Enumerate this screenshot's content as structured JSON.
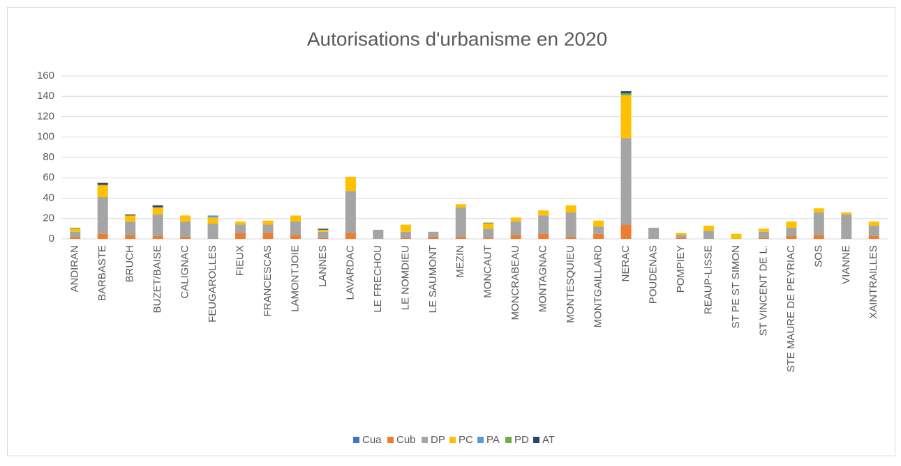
{
  "chart_data": {
    "type": "stacked-bar",
    "title": "Autorisations d'urbanisme en 2020",
    "categories": [
      "ANDIRAN",
      "BARBASTE",
      "BRUCH",
      "BUZET/BAISE",
      "CALIGNAC",
      "FEUGAROLLES",
      "FIEUX",
      "FRANCESCAS",
      "LAMONTJOIE",
      "LANNES",
      "LAVARDAC",
      "LE FRECHOU",
      "LE NOMDIEU",
      "LE SAUMONT",
      "MEZIN",
      "MONCAUT",
      "MONCRABEAU",
      "MONTAGNAC",
      "MONTESQUIEU",
      "MONTGAILLARD",
      "NERAC",
      "POUDENAS",
      "POMPIEY",
      "REAUP-LISSE",
      "ST PE ST SIMON",
      "ST VINCENT DE L.",
      "STE MAURE DE PEYRIAC",
      "SOS",
      "VIANNE",
      "XAINTRAILLES"
    ],
    "series": [
      {
        "name": "Cua",
        "color": "#4472c4",
        "values": [
          0,
          0,
          0,
          0,
          0,
          0,
          0,
          0,
          0,
          0,
          0,
          0,
          0,
          0,
          0,
          0,
          0,
          0,
          0,
          0,
          0,
          0,
          0,
          0,
          0,
          0,
          0,
          0,
          0,
          0
        ]
      },
      {
        "name": "Cub",
        "color": "#ed7d31",
        "values": [
          2,
          5,
          4,
          3,
          2,
          0,
          6,
          6,
          4,
          1,
          6,
          0,
          1,
          2,
          2,
          1,
          4,
          5,
          2,
          5,
          14,
          0,
          1,
          0,
          0,
          1,
          3,
          4,
          0,
          3
        ]
      },
      {
        "name": "DP",
        "color": "#a5a5a5",
        "values": [
          5,
          36,
          13,
          21,
          15,
          15,
          8,
          8,
          13,
          6,
          41,
          9,
          6,
          5,
          29,
          9,
          13,
          18,
          24,
          7,
          85,
          11,
          3,
          8,
          0,
          6,
          8,
          22,
          24,
          10
        ]
      },
      {
        "name": "PC",
        "color": "#ffc000",
        "values": [
          3,
          12,
          6,
          7,
          6,
          6,
          3,
          4,
          6,
          2,
          14,
          0,
          7,
          0,
          3,
          5,
          4,
          5,
          7,
          6,
          42,
          0,
          2,
          5,
          5,
          3,
          6,
          4,
          2,
          4
        ]
      },
      {
        "name": "PA",
        "color": "#5b9bd5",
        "values": [
          0,
          0,
          0,
          0,
          0,
          2,
          0,
          0,
          0,
          0,
          0,
          0,
          0,
          0,
          0,
          0,
          0,
          0,
          0,
          0,
          0,
          0,
          0,
          0,
          0,
          0,
          0,
          0,
          0,
          0
        ]
      },
      {
        "name": "PD",
        "color": "#70ad47",
        "values": [
          1,
          0,
          0,
          0,
          0,
          0,
          0,
          0,
          0,
          0,
          0,
          0,
          0,
          0,
          0,
          1,
          0,
          0,
          0,
          0,
          2,
          0,
          0,
          0,
          0,
          0,
          0,
          0,
          0,
          0
        ]
      },
      {
        "name": "AT",
        "color": "#264478",
        "values": [
          0,
          2,
          1,
          2,
          0,
          0,
          0,
          0,
          0,
          1,
          0,
          0,
          0,
          0,
          0,
          0,
          0,
          0,
          0,
          0,
          2,
          0,
          0,
          0,
          0,
          0,
          0,
          0,
          0,
          0
        ]
      }
    ],
    "ylim": [
      0,
      160
    ],
    "yticks": [
      0,
      20,
      40,
      60,
      80,
      100,
      120,
      140,
      160
    ],
    "grid": true,
    "legend": "bottom"
  }
}
